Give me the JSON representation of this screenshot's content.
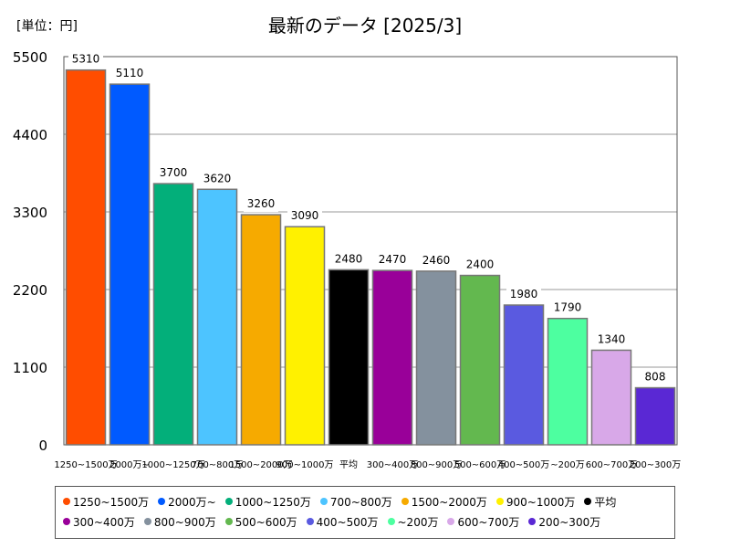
{
  "chart_data": {
    "type": "bar",
    "title": "最新のデータ [2025/3]",
    "unit_label": "[単位：円]",
    "ylim": [
      0,
      5500
    ],
    "yticks": [
      0,
      1100,
      2200,
      3300,
      4400,
      5500
    ],
    "grid": true,
    "legend_position": "bottom",
    "categories": [
      "1250~1500万",
      "2000万~",
      "1000~1250万",
      "700~800万",
      "1500~2000万",
      "900~1000万",
      "平均",
      "300~400万",
      "800~900万",
      "500~600万",
      "400~500万",
      "~200万",
      "600~700万",
      "200~300万"
    ],
    "values": [
      5310,
      5110,
      3700,
      3620,
      3260,
      3090,
      2480,
      2470,
      2460,
      2400,
      1980,
      1790,
      1340,
      808
    ],
    "colors": [
      "#ff4d00",
      "#005aff",
      "#03af7a",
      "#4dc4ff",
      "#f6aa00",
      "#fff100",
      "#000000",
      "#990099",
      "#84919e",
      "#63b84f",
      "#5a5ae0",
      "#4dffa0",
      "#d8a8e8",
      "#5a28d4"
    ]
  }
}
